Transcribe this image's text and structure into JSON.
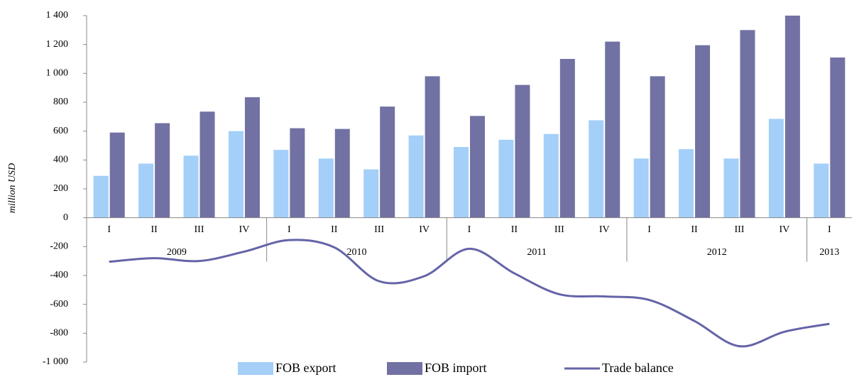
{
  "chart_data": {
    "type": "bar-line",
    "y_label": "million USD",
    "categories": [
      "I",
      "II",
      "III",
      "IV",
      "I",
      "II",
      "III",
      "IV",
      "I",
      "II",
      "III",
      "IV",
      "I",
      "II",
      "III",
      "IV",
      "I"
    ],
    "year_groups": [
      {
        "label": "2009",
        "count": 4
      },
      {
        "label": "2010",
        "count": 4
      },
      {
        "label": "2011",
        "count": 4
      },
      {
        "label": "2012",
        "count": 4
      },
      {
        "label": "2013",
        "count": 1
      }
    ],
    "series": [
      {
        "name": "FOB export",
        "type": "bar",
        "color": "#a3cff8",
        "values": [
          290,
          375,
          430,
          600,
          470,
          410,
          335,
          570,
          490,
          540,
          580,
          675,
          410,
          475,
          410,
          685,
          375
        ]
      },
      {
        "name": "FOB import",
        "type": "bar",
        "color": "#7171a3",
        "values": [
          590,
          655,
          735,
          835,
          620,
          615,
          770,
          980,
          705,
          920,
          1100,
          1220,
          980,
          1195,
          1300,
          1400,
          1110
        ]
      },
      {
        "name": "Trade balance",
        "type": "line",
        "color": "#6464a8",
        "values": [
          -305,
          -280,
          -300,
          -235,
          -155,
          -205,
          -440,
          -405,
          -215,
          -385,
          -530,
          -545,
          -570,
          -715,
          -890,
          -790,
          -735
        ]
      }
    ],
    "ylim": [
      -1000,
      1400
    ],
    "yticks": [
      {
        "value": -1000,
        "label": "-1 000"
      },
      -800,
      -600,
      -400,
      -200,
      0,
      200,
      400,
      600,
      800,
      {
        "value": 1000,
        "label": "1 000"
      },
      {
        "value": 1200,
        "label": "1 200"
      },
      {
        "value": 1400,
        "label": "1 400"
      }
    ],
    "grid": false
  }
}
